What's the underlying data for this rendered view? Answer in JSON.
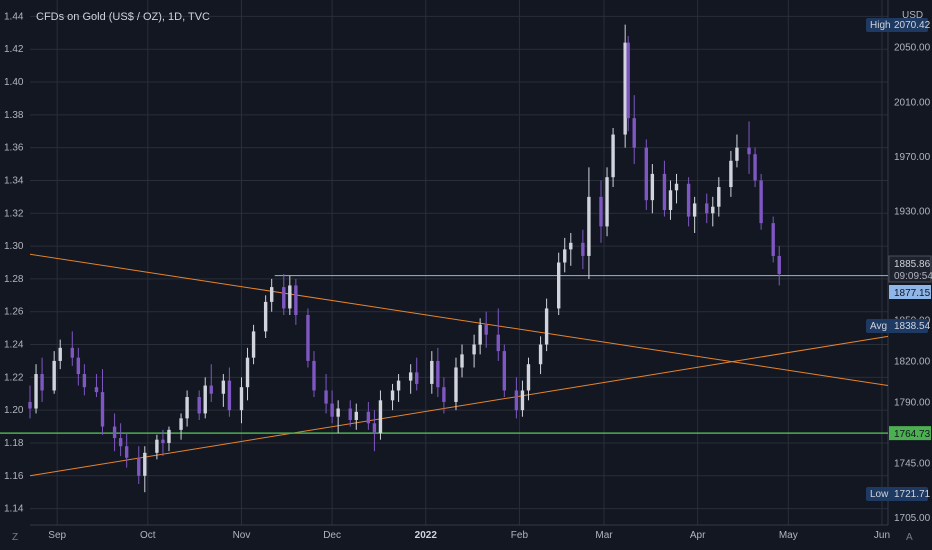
{
  "title": "CFDs on Gold (US$ / OZ), 1D, TVC",
  "currency": "USD",
  "stats": {
    "high": {
      "label": "High",
      "value": "2070.42"
    },
    "avg": {
      "label": "Avg",
      "value": "1838.54"
    },
    "low": {
      "label": "Low",
      "value": "1721.71"
    },
    "current_price": "1885.86",
    "countdown": "09:09:54",
    "blue_level": "1877.15",
    "green_level": "1764.73"
  },
  "colors": {
    "background": "#131722",
    "grid": "#2a2e39",
    "up_candle": "#d1d4dc",
    "down_candle": "#7e57c2",
    "orange_line": "#e8832a",
    "blue_line": "#8fb6e8",
    "green_line": "#4caf50",
    "axis_text": "#b2b5be"
  },
  "left_axis_ticks": [
    "1.44",
    "1.42",
    "1.40",
    "1.38",
    "1.36",
    "1.34",
    "1.32",
    "1.30",
    "1.28",
    "1.26",
    "1.24",
    "1.22",
    "1.20",
    "1.18",
    "1.16",
    "1.14"
  ],
  "right_axis_ticks": [
    "2050.00",
    "2010.00",
    "1970.00",
    "1930.00",
    "1850.00",
    "1820.00",
    "1790.00",
    "1745.00",
    "1705.00"
  ],
  "x_axis_ticks": [
    "Sep",
    "Oct",
    "Nov",
    "Dec",
    "2022",
    "Feb",
    "Mar",
    "Apr",
    "May",
    "Jun"
  ],
  "corner_labels": {
    "left": "Z",
    "right": "A"
  },
  "chart_data": {
    "type": "candlestick",
    "title": "CFDs on Gold (US$ / OZ), 1D, TVC",
    "interval": "1D",
    "x_range": [
      "2021-08-23",
      "2022-06-03"
    ],
    "left_axis": {
      "min": 1.13,
      "max": 1.45
    },
    "right_axis": {
      "min": 1700,
      "max": 2085
    },
    "candles": [
      {
        "date": "2021-08-23",
        "o": 1.205,
        "h": 1.215,
        "l": 1.195,
        "c": 1.201
      },
      {
        "date": "2021-08-25",
        "o": 1.201,
        "h": 1.228,
        "l": 1.198,
        "c": 1.222
      },
      {
        "date": "2021-08-27",
        "o": 1.222,
        "h": 1.232,
        "l": 1.205,
        "c": 1.212
      },
      {
        "date": "2021-08-31",
        "o": 1.212,
        "h": 1.236,
        "l": 1.21,
        "c": 1.23
      },
      {
        "date": "2021-09-02",
        "o": 1.23,
        "h": 1.243,
        "l": 1.225,
        "c": 1.238
      },
      {
        "date": "2021-09-06",
        "o": 1.238,
        "h": 1.248,
        "l": 1.227,
        "c": 1.232
      },
      {
        "date": "2021-09-08",
        "o": 1.232,
        "h": 1.238,
        "l": 1.215,
        "c": 1.222
      },
      {
        "date": "2021-09-10",
        "o": 1.222,
        "h": 1.228,
        "l": 1.209,
        "c": 1.214
      },
      {
        "date": "2021-09-14",
        "o": 1.214,
        "h": 1.222,
        "l": 1.208,
        "c": 1.211
      },
      {
        "date": "2021-09-16",
        "o": 1.211,
        "h": 1.225,
        "l": 1.185,
        "c": 1.19
      },
      {
        "date": "2021-09-20",
        "o": 1.19,
        "h": 1.198,
        "l": 1.175,
        "c": 1.183
      },
      {
        "date": "2021-09-22",
        "o": 1.183,
        "h": 1.192,
        "l": 1.172,
        "c": 1.178
      },
      {
        "date": "2021-09-24",
        "o": 1.178,
        "h": 1.186,
        "l": 1.165,
        "c": 1.171
      },
      {
        "date": "2021-09-28",
        "o": 1.171,
        "h": 1.178,
        "l": 1.155,
        "c": 1.16
      },
      {
        "date": "2021-09-30",
        "o": 1.16,
        "h": 1.178,
        "l": 1.15,
        "c": 1.174
      },
      {
        "date": "2021-10-04",
        "o": 1.174,
        "h": 1.185,
        "l": 1.17,
        "c": 1.182
      },
      {
        "date": "2021-10-06",
        "o": 1.182,
        "h": 1.188,
        "l": 1.172,
        "c": 1.18
      },
      {
        "date": "2021-10-08",
        "o": 1.18,
        "h": 1.19,
        "l": 1.175,
        "c": 1.188
      },
      {
        "date": "2021-10-12",
        "o": 1.188,
        "h": 1.198,
        "l": 1.182,
        "c": 1.195
      },
      {
        "date": "2021-10-14",
        "o": 1.195,
        "h": 1.212,
        "l": 1.19,
        "c": 1.208
      },
      {
        "date": "2021-10-18",
        "o": 1.208,
        "h": 1.212,
        "l": 1.194,
        "c": 1.198
      },
      {
        "date": "2021-10-20",
        "o": 1.198,
        "h": 1.22,
        "l": 1.195,
        "c": 1.215
      },
      {
        "date": "2021-10-22",
        "o": 1.215,
        "h": 1.228,
        "l": 1.205,
        "c": 1.21
      },
      {
        "date": "2021-10-26",
        "o": 1.21,
        "h": 1.222,
        "l": 1.202,
        "c": 1.218
      },
      {
        "date": "2021-10-28",
        "o": 1.218,
        "h": 1.226,
        "l": 1.196,
        "c": 1.2
      },
      {
        "date": "2021-11-01",
        "o": 1.2,
        "h": 1.22,
        "l": 1.192,
        "c": 1.214
      },
      {
        "date": "2021-11-03",
        "o": 1.214,
        "h": 1.238,
        "l": 1.206,
        "c": 1.232
      },
      {
        "date": "2021-11-05",
        "o": 1.232,
        "h": 1.252,
        "l": 1.228,
        "c": 1.248
      },
      {
        "date": "2021-11-09",
        "o": 1.248,
        "h": 1.27,
        "l": 1.244,
        "c": 1.266
      },
      {
        "date": "2021-11-11",
        "o": 1.266,
        "h": 1.28,
        "l": 1.26,
        "c": 1.275
      },
      {
        "date": "2021-11-15",
        "o": 1.275,
        "h": 1.283,
        "l": 1.258,
        "c": 1.262
      },
      {
        "date": "2021-11-17",
        "o": 1.262,
        "h": 1.282,
        "l": 1.258,
        "c": 1.276
      },
      {
        "date": "2021-11-19",
        "o": 1.276,
        "h": 1.28,
        "l": 1.252,
        "c": 1.258
      },
      {
        "date": "2021-11-23",
        "o": 1.258,
        "h": 1.262,
        "l": 1.226,
        "c": 1.23
      },
      {
        "date": "2021-11-25",
        "o": 1.23,
        "h": 1.236,
        "l": 1.208,
        "c": 1.212
      },
      {
        "date": "2021-11-29",
        "o": 1.212,
        "h": 1.222,
        "l": 1.198,
        "c": 1.204
      },
      {
        "date": "2021-12-01",
        "o": 1.204,
        "h": 1.212,
        "l": 1.192,
        "c": 1.196
      },
      {
        "date": "2021-12-03",
        "o": 1.196,
        "h": 1.206,
        "l": 1.186,
        "c": 1.201
      },
      {
        "date": "2021-12-07",
        "o": 1.201,
        "h": 1.206,
        "l": 1.19,
        "c": 1.194
      },
      {
        "date": "2021-12-09",
        "o": 1.194,
        "h": 1.204,
        "l": 1.188,
        "c": 1.199
      },
      {
        "date": "2021-12-13",
        "o": 1.199,
        "h": 1.205,
        "l": 1.188,
        "c": 1.192
      },
      {
        "date": "2021-12-15",
        "o": 1.192,
        "h": 1.2,
        "l": 1.175,
        "c": 1.186
      },
      {
        "date": "2021-12-17",
        "o": 1.186,
        "h": 1.212,
        "l": 1.182,
        "c": 1.206
      },
      {
        "date": "2021-12-21",
        "o": 1.206,
        "h": 1.216,
        "l": 1.2,
        "c": 1.212
      },
      {
        "date": "2021-12-23",
        "o": 1.212,
        "h": 1.222,
        "l": 1.205,
        "c": 1.218
      },
      {
        "date": "2021-12-27",
        "o": 1.218,
        "h": 1.228,
        "l": 1.21,
        "c": 1.223
      },
      {
        "date": "2021-12-29",
        "o": 1.223,
        "h": 1.232,
        "l": 1.212,
        "c": 1.216
      },
      {
        "date": "2022-01-03",
        "o": 1.216,
        "h": 1.236,
        "l": 1.21,
        "c": 1.23
      },
      {
        "date": "2022-01-05",
        "o": 1.23,
        "h": 1.238,
        "l": 1.208,
        "c": 1.214
      },
      {
        "date": "2022-01-07",
        "o": 1.214,
        "h": 1.22,
        "l": 1.198,
        "c": 1.205
      },
      {
        "date": "2022-01-11",
        "o": 1.205,
        "h": 1.232,
        "l": 1.2,
        "c": 1.226
      },
      {
        "date": "2022-01-13",
        "o": 1.226,
        "h": 1.24,
        "l": 1.22,
        "c": 1.234
      },
      {
        "date": "2022-01-17",
        "o": 1.234,
        "h": 1.246,
        "l": 1.226,
        "c": 1.24
      },
      {
        "date": "2022-01-19",
        "o": 1.24,
        "h": 1.256,
        "l": 1.234,
        "c": 1.252
      },
      {
        "date": "2022-01-21",
        "o": 1.252,
        "h": 1.26,
        "l": 1.238,
        "c": 1.246
      },
      {
        "date": "2022-01-25",
        "o": 1.246,
        "h": 1.262,
        "l": 1.23,
        "c": 1.236
      },
      {
        "date": "2022-01-27",
        "o": 1.236,
        "h": 1.24,
        "l": 1.208,
        "c": 1.212
      },
      {
        "date": "2022-01-31",
        "o": 1.212,
        "h": 1.22,
        "l": 1.195,
        "c": 1.2
      },
      {
        "date": "2022-02-02",
        "o": 1.2,
        "h": 1.218,
        "l": 1.196,
        "c": 1.212
      },
      {
        "date": "2022-02-04",
        "o": 1.212,
        "h": 1.232,
        "l": 1.206,
        "c": 1.228
      },
      {
        "date": "2022-02-08",
        "o": 1.228,
        "h": 1.245,
        "l": 1.222,
        "c": 1.24
      },
      {
        "date": "2022-02-10",
        "o": 1.24,
        "h": 1.268,
        "l": 1.236,
        "c": 1.262
      },
      {
        "date": "2022-02-14",
        "o": 1.262,
        "h": 1.296,
        "l": 1.258,
        "c": 1.29
      },
      {
        "date": "2022-02-16",
        "o": 1.29,
        "h": 1.305,
        "l": 1.284,
        "c": 1.298
      },
      {
        "date": "2022-02-18",
        "o": 1.298,
        "h": 1.308,
        "l": 1.288,
        "c": 1.302
      },
      {
        "date": "2022-02-22",
        "o": 1.302,
        "h": 1.31,
        "l": 1.286,
        "c": 1.294
      },
      {
        "date": "2022-02-24",
        "o": 1.294,
        "h": 1.348,
        "l": 1.28,
        "c": 1.33
      },
      {
        "date": "2022-02-28",
        "o": 1.33,
        "h": 1.34,
        "l": 1.302,
        "c": 1.312
      },
      {
        "date": "2022-03-02",
        "o": 1.312,
        "h": 1.348,
        "l": 1.306,
        "c": 1.342
      },
      {
        "date": "2022-03-04",
        "o": 1.342,
        "h": 1.372,
        "l": 1.336,
        "c": 1.368
      },
      {
        "date": "2022-03-08",
        "o": 1.368,
        "h": 1.435,
        "l": 1.36,
        "c": 1.424
      },
      {
        "date": "2022-03-09",
        "o": 1.424,
        "h": 1.428,
        "l": 1.37,
        "c": 1.378
      },
      {
        "date": "2022-03-11",
        "o": 1.378,
        "h": 1.392,
        "l": 1.35,
        "c": 1.36
      },
      {
        "date": "2022-03-15",
        "o": 1.36,
        "h": 1.365,
        "l": 1.322,
        "c": 1.328
      },
      {
        "date": "2022-03-17",
        "o": 1.328,
        "h": 1.35,
        "l": 1.32,
        "c": 1.344
      },
      {
        "date": "2022-03-21",
        "o": 1.344,
        "h": 1.352,
        "l": 1.318,
        "c": 1.322
      },
      {
        "date": "2022-03-23",
        "o": 1.322,
        "h": 1.34,
        "l": 1.316,
        "c": 1.334
      },
      {
        "date": "2022-03-25",
        "o": 1.334,
        "h": 1.344,
        "l": 1.326,
        "c": 1.338
      },
      {
        "date": "2022-03-29",
        "o": 1.338,
        "h": 1.342,
        "l": 1.312,
        "c": 1.318
      },
      {
        "date": "2022-03-31",
        "o": 1.318,
        "h": 1.33,
        "l": 1.308,
        "c": 1.326
      },
      {
        "date": "2022-04-04",
        "o": 1.326,
        "h": 1.332,
        "l": 1.314,
        "c": 1.32
      },
      {
        "date": "2022-04-06",
        "o": 1.32,
        "h": 1.33,
        "l": 1.312,
        "c": 1.324
      },
      {
        "date": "2022-04-08",
        "o": 1.324,
        "h": 1.342,
        "l": 1.318,
        "c": 1.336
      },
      {
        "date": "2022-04-12",
        "o": 1.336,
        "h": 1.358,
        "l": 1.33,
        "c": 1.352
      },
      {
        "date": "2022-04-14",
        "o": 1.352,
        "h": 1.368,
        "l": 1.348,
        "c": 1.36
      },
      {
        "date": "2022-04-18",
        "o": 1.36,
        "h": 1.376,
        "l": 1.344,
        "c": 1.356
      },
      {
        "date": "2022-04-20",
        "o": 1.356,
        "h": 1.36,
        "l": 1.336,
        "c": 1.34
      },
      {
        "date": "2022-04-22",
        "o": 1.34,
        "h": 1.344,
        "l": 1.31,
        "c": 1.314
      },
      {
        "date": "2022-04-26",
        "o": 1.314,
        "h": 1.318,
        "l": 1.29,
        "c": 1.294
      },
      {
        "date": "2022-04-28",
        "o": 1.294,
        "h": 1.3,
        "l": 1.276,
        "c": 1.283
      }
    ],
    "lines": [
      {
        "name": "orange-trend-down",
        "from": [
          "2021-08-23",
          1.295
        ],
        "to": [
          "2022-06-03",
          1.215
        ]
      },
      {
        "name": "orange-trend-up",
        "from": [
          "2021-08-23",
          1.16
        ],
        "to": [
          "2022-06-03",
          1.245
        ]
      },
      {
        "name": "blue-horizontal",
        "from": [
          "2021-11-12",
          1.282
        ],
        "to": [
          "2022-06-03",
          1.282
        ]
      },
      {
        "name": "green-horizontal",
        "value": 1.186
      }
    ]
  }
}
